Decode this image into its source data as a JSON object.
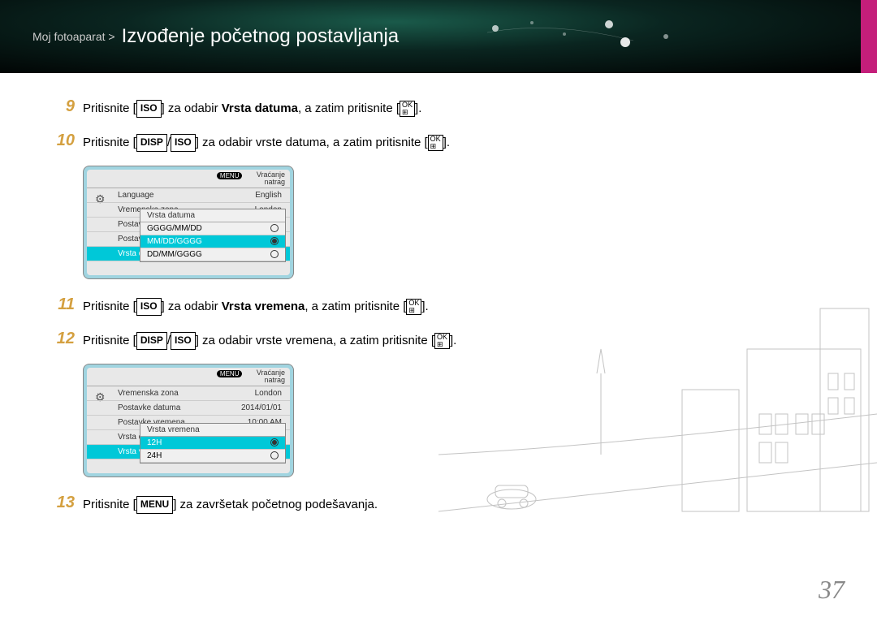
{
  "header": {
    "breadcrumb": "Moj fotoaparat >",
    "title": "Izvođenje početnog postavljanja"
  },
  "steps": {
    "s9": {
      "num": "9",
      "pre": "Pritisnite [",
      "btn": "ISO",
      "mid": "] za odabir ",
      "bold": "Vrsta datuma",
      "post": ", a zatim pritisnite [",
      "end": "]."
    },
    "s10": {
      "num": "10",
      "pre": "Pritisnite [",
      "btn1": "DISP",
      "sep": "/",
      "btn2": "ISO",
      "post": "] za odabir vrste datuma, a zatim pritisnite [",
      "end": "]."
    },
    "s11": {
      "num": "11",
      "pre": "Pritisnite [",
      "btn": "ISO",
      "mid": "] za odabir ",
      "bold": "Vrsta vremena",
      "post": ", a zatim pritisnite [",
      "end": "]."
    },
    "s12": {
      "num": "12",
      "pre": "Pritisnite [",
      "btn1": "DISP",
      "sep": "/",
      "btn2": "ISO",
      "post": "] za odabir vrste vremena, a zatim pritisnite [",
      "end": "]."
    },
    "s13": {
      "num": "13",
      "pre": "Pritisnite [",
      "btn": "MENU",
      "post": "] za završetak početnog podešavanja."
    }
  },
  "okBtn": {
    "top": "OK",
    "bottom": "⊞"
  },
  "ui1": {
    "menuBadge": "MENU",
    "back": "Vraćanje natrag",
    "rows": [
      {
        "l": "Language",
        "r": "English"
      },
      {
        "l": "Vremenska zona",
        "r": "London"
      },
      {
        "l": "Postavke d",
        "r": ""
      },
      {
        "l": "Postavke v",
        "r": ""
      },
      {
        "l": "Vrsta datu",
        "r": "",
        "sel": true
      }
    ],
    "popup": {
      "title": "Vrsta datuma",
      "options": [
        {
          "label": "GGGG/MM/DD",
          "on": false
        },
        {
          "label": "MM/DD/GGGG",
          "on": true
        },
        {
          "label": "DD/MM/GGGG",
          "on": false
        }
      ]
    }
  },
  "ui2": {
    "menuBadge": "MENU",
    "back": "Vraćanje natrag",
    "rows": [
      {
        "l": "Vremenska zona",
        "r": "London"
      },
      {
        "l": "Postavke datuma",
        "r": "2014/01/01"
      },
      {
        "l": "Postavke vremena",
        "r": "10:00 AM"
      },
      {
        "l": "Vrsta datu",
        "r": ""
      },
      {
        "l": "Vrsta vrem",
        "r": "",
        "sel": true
      }
    ],
    "popup": {
      "title": "Vrsta vremena",
      "options": [
        {
          "label": "12H",
          "on": true
        },
        {
          "label": "24H",
          "on": false
        }
      ]
    }
  },
  "pageNumber": "37"
}
